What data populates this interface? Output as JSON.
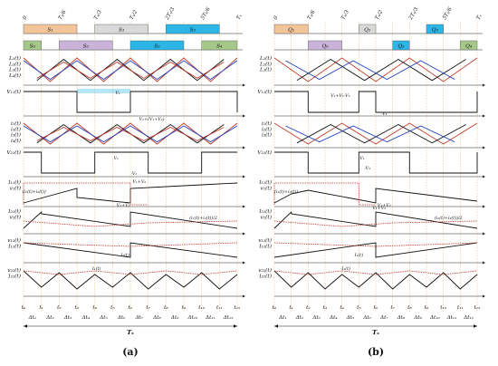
{
  "panels": [
    {
      "id": "a",
      "caption": "(a)",
      "top_ticks": [
        "0",
        "Tₛ/6",
        "Tₛ/3",
        "Tₛ/2",
        "2Tₛ/3",
        "5Tₛ/6",
        "Tₛ"
      ],
      "switches_row1": [
        {
          "label": "S₁",
          "color": "#f2c49a"
        },
        {
          "label": "S₃",
          "color": "#d9d9d9"
        },
        {
          "label": "S₅",
          "color": "#2bb6e6"
        }
      ],
      "switches_row2": [
        {
          "label": "S₆",
          "color": "#a6c98a"
        },
        {
          "label": "S₆",
          "color": "#c9b3d9"
        },
        {
          "label": "S₂",
          "color": "#2bb6e6"
        },
        {
          "label": "S₄",
          "color": "#a6c98a"
        }
      ],
      "signal_labels": [
        [
          "L₁(t)",
          "L₂(t)",
          "L₃(t)",
          "L₄(t)"
        ],
        [
          "V₁₁(t)"
        ],
        [
          "i₁(t)",
          "i₂(t)",
          "i₃(t)",
          "i₄(t)"
        ],
        [
          "V₂₁(t)"
        ],
        [
          "I₁₁(t)",
          "v₁(t)"
        ],
        [
          "I₂₁(t)",
          "v₂(t)"
        ],
        [
          "v₁₂(t)",
          "I₁₂(t)"
        ],
        [
          "v₂₂(t)",
          "I₂₂(t)"
        ]
      ],
      "annotations": [
        "V₁",
        "V₁+(V₁+V₂)",
        "V₁",
        "-V₂",
        "V₁+V₂",
        "(i₁(t)+i₂(t))",
        "V₁+V₂",
        "(i₁(t)+i₂(t))/2",
        "I₂(t)",
        "I₁(t)"
      ],
      "bottom_ticks": [
        "t₀",
        "t₁",
        "t₂",
        "t₃",
        "t₄",
        "t₅",
        "t₆",
        "t₇",
        "t₈",
        "t₉",
        "t₁₀",
        "t₁₁",
        "t₁₂"
      ],
      "deltas": [
        "Δt₁",
        "Δt₂",
        "Δt₃",
        "Δt₄",
        "Δt₅",
        "Δt₆",
        "Δt₇",
        "Δt₈",
        "Δt₉",
        "Δt₁₀",
        "Δt₁₁",
        "Δt₁₂"
      ],
      "period_label": "Tₛ"
    },
    {
      "id": "b",
      "caption": "(b)",
      "top_ticks": [
        "0",
        "Tₛ/6",
        "Tₛ/3",
        "Tₛ/2",
        "2Tₛ/3",
        "5Tₛ/6",
        "Tₛ"
      ],
      "switches_row1": [
        {
          "label": "Q₁",
          "color": "#f2c49a"
        },
        {
          "label": "Q₃",
          "color": "#d9d9d9"
        },
        {
          "label": "Q₅",
          "color": "#2bb6e6"
        }
      ],
      "switches_row2": [
        {
          "label": "Q₆",
          "color": "#c9b3d9"
        },
        {
          "label": "Q₂",
          "color": "#2bb6e6"
        },
        {
          "label": "Q₄",
          "color": "#a6c98a"
        }
      ],
      "signal_labels": [
        [
          "L₁(t)",
          "L₂(t)",
          "L₃(t)"
        ],
        [
          "V₁₁(t)"
        ],
        [
          "i₁(t)",
          "i₂(t)",
          "i₃(t)"
        ],
        [
          "V₂₁(t)"
        ],
        [
          "I₁₁(t)",
          "v₁(t)"
        ],
        [
          "I₂₁(t)",
          "v₂(t)"
        ],
        [
          "v₁₂(t)",
          "I₁₂(t)"
        ],
        [
          "v₂₂(t)",
          "I₂₂(t)"
        ]
      ],
      "annotations": [
        "V₁+V₂-V₃",
        "-V₁",
        "V₁",
        "-V₃",
        "(i₁(t)+i₂(t))",
        "V₁+V₂",
        "V₁+V₂",
        "(i₁(t)+i₂(t))/2",
        "I₁(t)",
        "-I₁(t)"
      ],
      "bottom_ticks": [
        "t₀",
        "t₁",
        "t₂",
        "t₃",
        "t₄",
        "t₅",
        "t₆",
        "t₇",
        "t₈",
        "t₉",
        "t₁₀",
        "t₁₁",
        "t₁₂"
      ],
      "deltas": [
        "Δt₁",
        "Δt₂",
        "Δt₃",
        "Δt₄",
        "Δt₅",
        "Δt₆",
        "Δt₇",
        "Δt₈",
        "Δt₉",
        "Δt₁₀",
        "Δt₁₁",
        "Δt₁₂"
      ],
      "period_label": "Tₛ"
    }
  ],
  "colors": {
    "phase_red": "#c0392b",
    "phase_blue": "#1f3fbf",
    "phase_black": "#111111",
    "highlight": "#2bb6e6",
    "guide": "#e8c77a"
  }
}
